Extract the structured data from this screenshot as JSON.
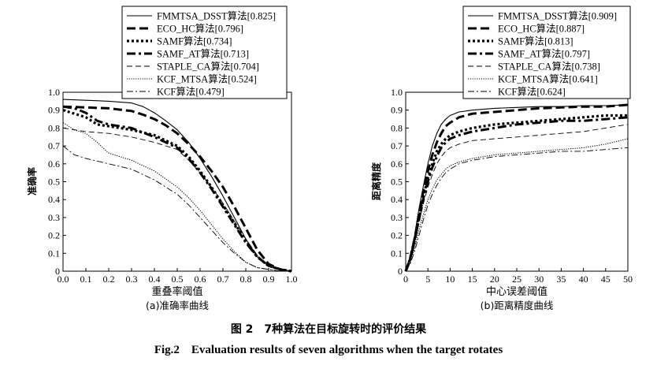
{
  "chart_data": [
    {
      "type": "line",
      "subtitle": "(a)准确率曲线",
      "xlabel": "重叠率阈值",
      "ylabel": "准确率",
      "xlim": [
        0,
        1
      ],
      "ylim": [
        0,
        1
      ],
      "xticks": [
        "0.0",
        "0.1",
        "0.2",
        "0.3",
        "0.4",
        "0.5",
        "0.6",
        "0.7",
        "0.8",
        "0.9",
        "1.0"
      ],
      "yticks": [
        "0",
        "0.1",
        "0.2",
        "0.3",
        "0.4",
        "0.5",
        "0.6",
        "0.7",
        "0.8",
        "0.9",
        "1.0"
      ],
      "legend_position": "top",
      "series": [
        {
          "name": "FMMTSA_DSST算法[0.825]",
          "style": "solid",
          "x": [
            0,
            0.1,
            0.2,
            0.3,
            0.35,
            0.4,
            0.45,
            0.5,
            0.55,
            0.6,
            0.65,
            0.7,
            0.75,
            0.8,
            0.85,
            0.9,
            0.95,
            1.0
          ],
          "y": [
            0.96,
            0.955,
            0.95,
            0.94,
            0.92,
            0.885,
            0.84,
            0.79,
            0.72,
            0.63,
            0.53,
            0.42,
            0.3,
            0.18,
            0.08,
            0.03,
            0.01,
            0.0
          ]
        },
        {
          "name": "ECO_HC算法[0.796]",
          "style": "dash-thick",
          "x": [
            0,
            0.1,
            0.2,
            0.3,
            0.35,
            0.4,
            0.45,
            0.5,
            0.55,
            0.6,
            0.65,
            0.7,
            0.75,
            0.8,
            0.85,
            0.9,
            0.95,
            1.0
          ],
          "y": [
            0.92,
            0.915,
            0.91,
            0.895,
            0.875,
            0.85,
            0.815,
            0.77,
            0.71,
            0.64,
            0.56,
            0.47,
            0.36,
            0.24,
            0.12,
            0.04,
            0.01,
            0.0
          ]
        },
        {
          "name": "SAMF算法[0.734]",
          "style": "dot-thick",
          "x": [
            0,
            0.05,
            0.1,
            0.15,
            0.2,
            0.3,
            0.4,
            0.5,
            0.55,
            0.6,
            0.65,
            0.7,
            0.75,
            0.8,
            0.85,
            0.9,
            0.95,
            1.0
          ],
          "y": [
            0.9,
            0.88,
            0.86,
            0.82,
            0.81,
            0.79,
            0.76,
            0.7,
            0.64,
            0.56,
            0.47,
            0.37,
            0.27,
            0.17,
            0.08,
            0.03,
            0.01,
            0.0
          ]
        },
        {
          "name": "SAMF_AT算法[0.713]",
          "style": "dashdot-thick",
          "x": [
            0,
            0.05,
            0.1,
            0.15,
            0.2,
            0.3,
            0.4,
            0.5,
            0.55,
            0.6,
            0.65,
            0.7,
            0.75,
            0.8,
            0.85,
            0.9,
            0.95,
            1.0
          ],
          "y": [
            0.92,
            0.91,
            0.885,
            0.84,
            0.82,
            0.8,
            0.75,
            0.69,
            0.63,
            0.55,
            0.46,
            0.36,
            0.26,
            0.16,
            0.08,
            0.03,
            0.01,
            0.0
          ]
        },
        {
          "name": "STAPLE_CA算法[0.704]",
          "style": "dash-thin",
          "x": [
            0,
            0.1,
            0.2,
            0.3,
            0.4,
            0.5,
            0.55,
            0.6,
            0.65,
            0.7,
            0.75,
            0.8,
            0.85,
            0.9,
            0.95,
            1.0
          ],
          "y": [
            0.8,
            0.78,
            0.77,
            0.75,
            0.72,
            0.68,
            0.62,
            0.55,
            0.47,
            0.38,
            0.28,
            0.18,
            0.09,
            0.03,
            0.01,
            0.0
          ]
        },
        {
          "name": "KCF_MTSA算法[0.524]",
          "style": "dot-thin",
          "x": [
            0,
            0.05,
            0.1,
            0.15,
            0.2,
            0.3,
            0.4,
            0.5,
            0.55,
            0.6,
            0.65,
            0.7,
            0.75,
            0.8,
            0.85,
            0.9,
            0.95,
            1.0
          ],
          "y": [
            0.83,
            0.79,
            0.77,
            0.72,
            0.66,
            0.62,
            0.56,
            0.47,
            0.41,
            0.34,
            0.26,
            0.18,
            0.11,
            0.05,
            0.02,
            0.01,
            0.0,
            0.0
          ]
        },
        {
          "name": "KCF算法[0.479]",
          "style": "dashdot-thin",
          "x": [
            0,
            0.05,
            0.1,
            0.2,
            0.3,
            0.4,
            0.5,
            0.55,
            0.6,
            0.65,
            0.7,
            0.75,
            0.8,
            0.85,
            0.9,
            0.95,
            1.0
          ],
          "y": [
            0.7,
            0.65,
            0.63,
            0.6,
            0.57,
            0.51,
            0.43,
            0.37,
            0.3,
            0.23,
            0.16,
            0.1,
            0.05,
            0.02,
            0.01,
            0.0,
            0.0
          ]
        }
      ]
    },
    {
      "type": "line",
      "subtitle": "(b)距离精度曲线",
      "xlabel": "中心误差阈值",
      "ylabel": "距离精度",
      "xlim": [
        0,
        50
      ],
      "ylim": [
        0,
        1
      ],
      "xticks": [
        "0",
        "5",
        "10",
        "15",
        "20",
        "25",
        "30",
        "35",
        "40",
        "45",
        "50"
      ],
      "yticks": [
        "0",
        "0.1",
        "0.2",
        "0.3",
        "0.4",
        "0.5",
        "0.6",
        "0.7",
        "0.8",
        "0.9",
        "1.0"
      ],
      "legend_position": "top",
      "series": [
        {
          "name": "FMMTSA_DSST算法[0.909]",
          "style": "solid",
          "x": [
            0,
            1,
            2,
            3,
            4,
            5,
            6,
            7,
            8,
            9,
            10,
            12,
            15,
            20,
            25,
            30,
            35,
            40,
            45,
            50
          ],
          "y": [
            0.0,
            0.08,
            0.2,
            0.35,
            0.48,
            0.6,
            0.7,
            0.77,
            0.82,
            0.85,
            0.87,
            0.89,
            0.9,
            0.91,
            0.915,
            0.92,
            0.92,
            0.925,
            0.925,
            0.93
          ]
        },
        {
          "name": "ECO_HC算法[0.887]",
          "style": "dash-thick",
          "x": [
            0,
            1,
            2,
            3,
            4,
            5,
            6,
            7,
            8,
            9,
            10,
            12,
            15,
            20,
            25,
            30,
            35,
            40,
            45,
            50
          ],
          "y": [
            0.0,
            0.07,
            0.18,
            0.32,
            0.45,
            0.56,
            0.65,
            0.72,
            0.77,
            0.81,
            0.83,
            0.86,
            0.88,
            0.89,
            0.9,
            0.91,
            0.915,
            0.92,
            0.92,
            0.93
          ]
        },
        {
          "name": "SAMF算法[0.813]",
          "style": "dot-thick",
          "x": [
            0,
            1,
            2,
            3,
            4,
            5,
            6,
            7,
            8,
            9,
            10,
            12,
            15,
            20,
            25,
            30,
            35,
            40,
            45,
            50
          ],
          "y": [
            0.0,
            0.07,
            0.18,
            0.3,
            0.42,
            0.52,
            0.6,
            0.67,
            0.71,
            0.74,
            0.76,
            0.78,
            0.8,
            0.82,
            0.83,
            0.84,
            0.85,
            0.86,
            0.87,
            0.87
          ]
        },
        {
          "name": "SAMF_AT算法[0.797]",
          "style": "dashdot-thick",
          "x": [
            0,
            1,
            2,
            3,
            4,
            5,
            6,
            7,
            8,
            9,
            10,
            12,
            15,
            20,
            25,
            30,
            35,
            40,
            45,
            50
          ],
          "y": [
            0.0,
            0.06,
            0.17,
            0.29,
            0.41,
            0.5,
            0.58,
            0.64,
            0.69,
            0.72,
            0.74,
            0.76,
            0.78,
            0.8,
            0.82,
            0.83,
            0.84,
            0.84,
            0.85,
            0.86
          ]
        },
        {
          "name": "STAPLE_CA算法[0.738]",
          "style": "dash-thin",
          "x": [
            0,
            1,
            2,
            3,
            4,
            5,
            6,
            7,
            8,
            9,
            10,
            12,
            15,
            20,
            25,
            30,
            35,
            40,
            45,
            50
          ],
          "y": [
            0.0,
            0.05,
            0.15,
            0.27,
            0.38,
            0.47,
            0.54,
            0.6,
            0.64,
            0.67,
            0.69,
            0.71,
            0.73,
            0.74,
            0.75,
            0.76,
            0.77,
            0.78,
            0.8,
            0.82
          ]
        },
        {
          "name": "KCF_MTSA算法[0.641]",
          "style": "dot-thin",
          "x": [
            0,
            1,
            2,
            3,
            4,
            5,
            6,
            7,
            8,
            9,
            10,
            12,
            15,
            20,
            25,
            30,
            35,
            40,
            45,
            50
          ],
          "y": [
            0.0,
            0.05,
            0.13,
            0.23,
            0.32,
            0.4,
            0.46,
            0.51,
            0.54,
            0.57,
            0.59,
            0.61,
            0.63,
            0.65,
            0.66,
            0.67,
            0.68,
            0.69,
            0.71,
            0.74
          ]
        },
        {
          "name": "KCF算法[0.624]",
          "style": "dashdot-thin",
          "x": [
            0,
            1,
            2,
            3,
            4,
            5,
            6,
            7,
            8,
            9,
            10,
            12,
            15,
            20,
            25,
            30,
            35,
            40,
            45,
            50
          ],
          "y": [
            0.0,
            0.04,
            0.11,
            0.2,
            0.29,
            0.37,
            0.43,
            0.48,
            0.52,
            0.55,
            0.57,
            0.6,
            0.62,
            0.64,
            0.65,
            0.66,
            0.67,
            0.67,
            0.68,
            0.69
          ]
        }
      ]
    }
  ],
  "caption": {
    "cn": "图 2　7种算法在目标旋转时的评价结果",
    "en": "Fig.2    Evaluation results of seven algorithms when the target rotates"
  }
}
